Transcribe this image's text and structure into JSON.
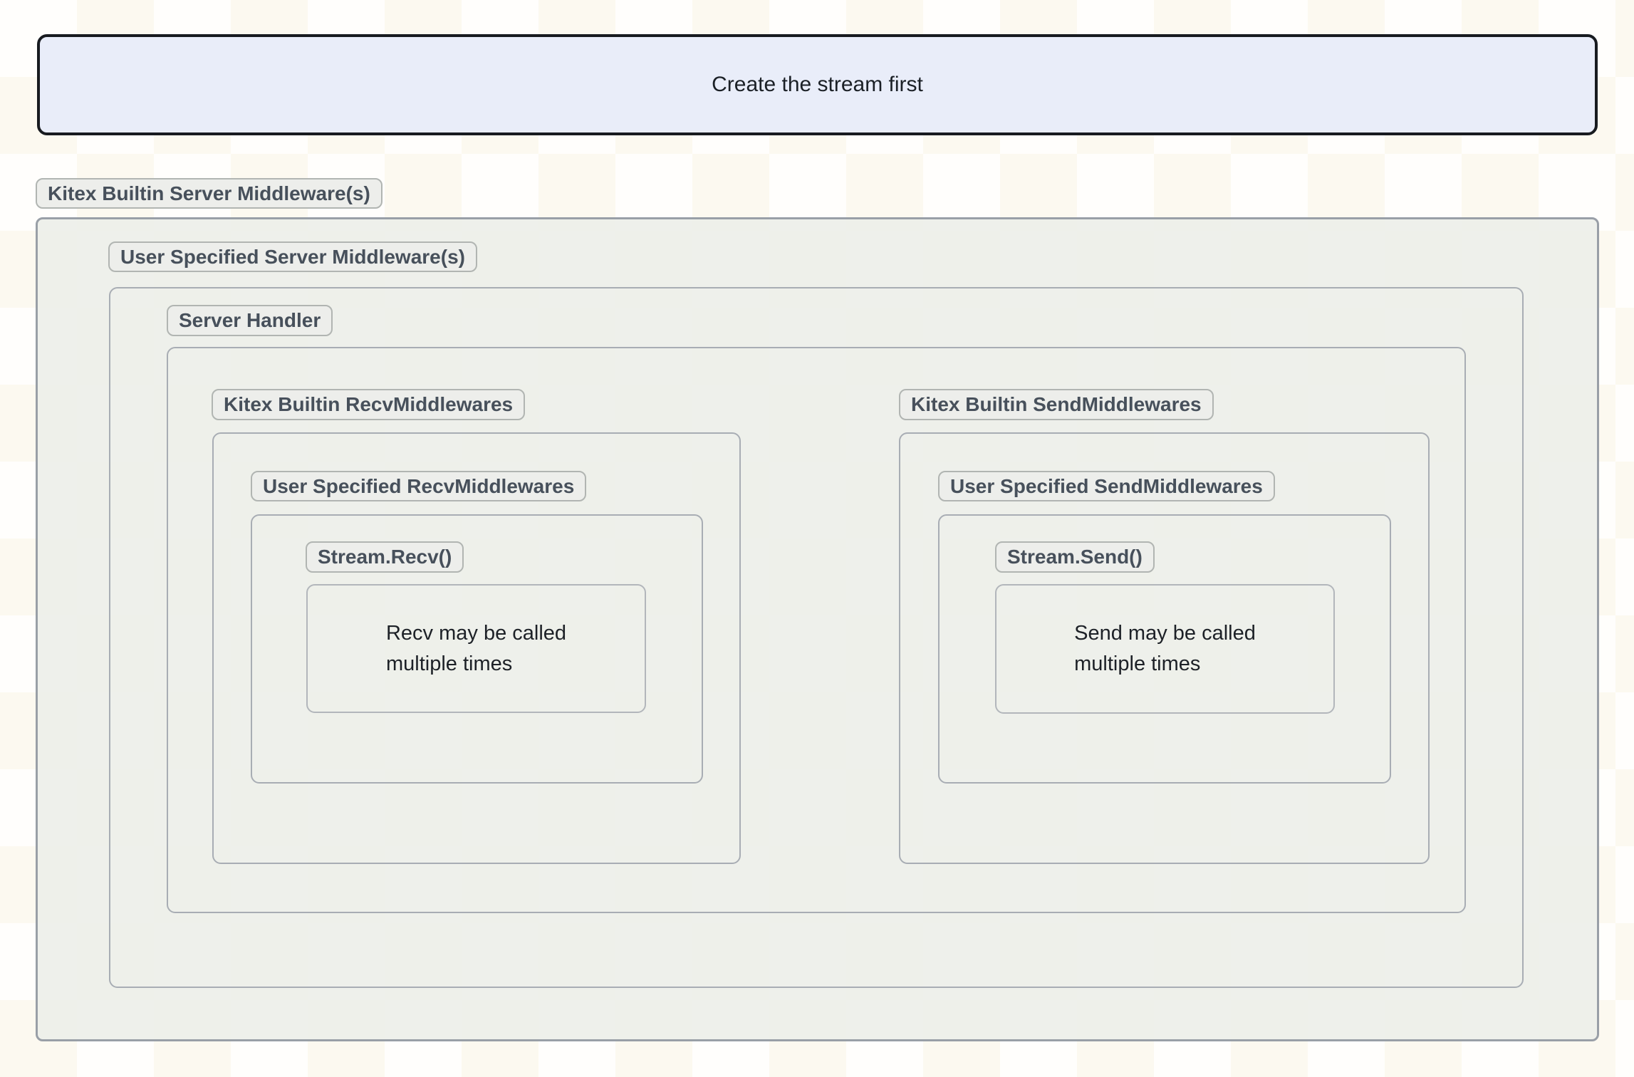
{
  "note": {
    "text": "Create the stream first"
  },
  "labels": {
    "kitex_builtin_server": "Kitex Builtin Server Middleware(s)",
    "user_specified_server": "User Specified Server Middleware(s)",
    "server_handler": "Server Handler",
    "kitex_builtin_recv": "Kitex Builtin RecvMiddlewares",
    "kitex_builtin_send": "Kitex Builtin SendMiddlewares",
    "user_specified_recv": "User Specified RecvMiddlewares",
    "user_specified_send": "User Specified SendMiddlewares",
    "stream_recv": "Stream.Recv()",
    "stream_send": "Stream.Send()"
  },
  "notes": {
    "recv": "Recv may be called\nmultiple times",
    "send": "Send may be called\nmultiple times"
  },
  "colors": {
    "note_fill": "#E9EDF9",
    "note_border": "#181B20",
    "container_fill": "#EDEFEA",
    "container_border": "#999FA7",
    "inner_border": "#A8ADB4",
    "badge_fill": "#ECEDEA",
    "badge_border": "#B1B5B2",
    "badge_text": "#47505B",
    "body_text": "#1D2127"
  }
}
